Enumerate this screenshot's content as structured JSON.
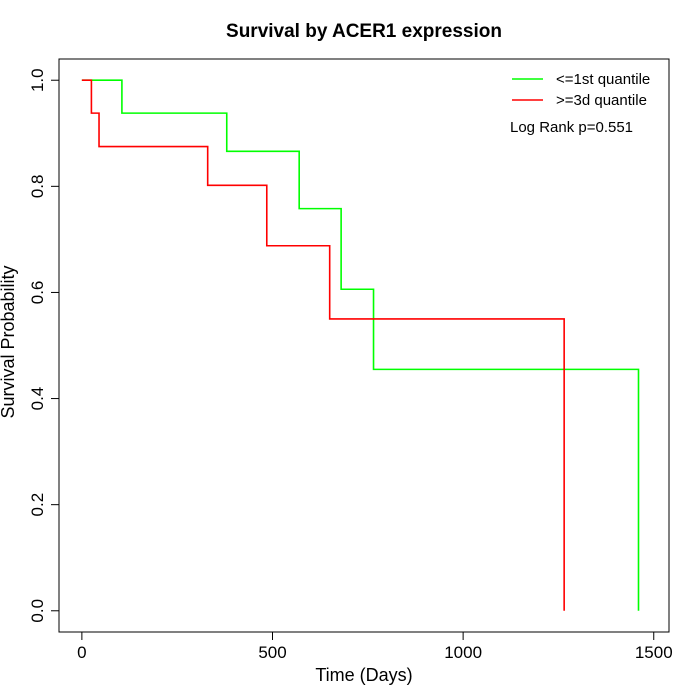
{
  "chart_data": {
    "type": "line",
    "title": "Survival by ACER1 expression",
    "xlabel": "Time (Days)",
    "ylabel": "Survival Probability",
    "xlim": [
      -60,
      1540
    ],
    "ylim": [
      -0.04,
      1.04
    ],
    "xticks": [
      0,
      500,
      1000,
      1500
    ],
    "yticks": [
      0.0,
      0.2,
      0.4,
      0.6,
      0.8,
      1.0
    ],
    "xtick_labels": [
      "0",
      "500",
      "1000",
      "1500"
    ],
    "ytick_labels": [
      "0.0",
      "0.2",
      "0.4",
      "0.6",
      "0.8",
      "1.0"
    ],
    "grid": false,
    "legend_position": "top-right",
    "series": [
      {
        "name": "<=1st quantile",
        "color": "#00ff00",
        "step": true,
        "x": [
          0,
          105,
          380,
          570,
          680,
          765,
          1460,
          1460
        ],
        "y": [
          1.0,
          0.938,
          0.866,
          0.758,
          0.606,
          0.455,
          0.455,
          0.0
        ]
      },
      {
        "name": ">=3d quantile",
        "color": "#ff0000",
        "step": true,
        "x": [
          0,
          25,
          45,
          330,
          485,
          650,
          1265,
          1265
        ],
        "y": [
          1.0,
          0.938,
          0.875,
          0.802,
          0.688,
          0.55,
          0.55,
          0.0
        ]
      }
    ],
    "annotations": [
      {
        "text": "Log Rank p=0.551"
      }
    ]
  }
}
